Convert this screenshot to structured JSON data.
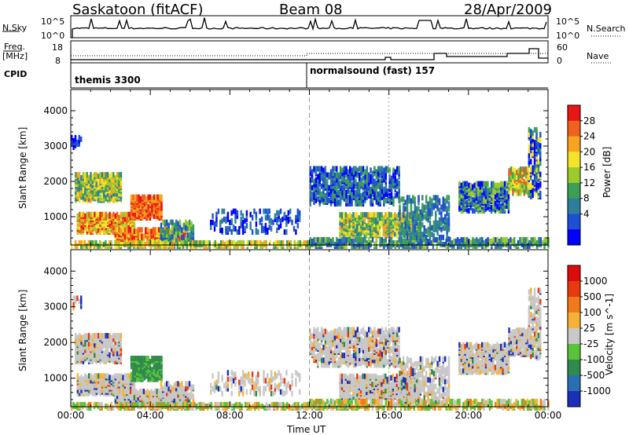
{
  "header": {
    "station": "Saskatoon (fitACF)",
    "beam": "Beam 08",
    "date": "28/Apr/2009"
  },
  "strips": {
    "nsky_label": "N.Sky",
    "nsky_ticks": [
      "10^5",
      "10^0"
    ],
    "nsearch_label": "N.Search",
    "nsearch_ticks": [
      "10^5",
      "10^0"
    ],
    "freq_label": "Freq.",
    "freq_unit": "[MHz]",
    "freq_ticks": [
      "18",
      "8"
    ],
    "nave_label": "Nave",
    "nave_ticks": [
      "60",
      "0"
    ],
    "cpid_label": "CPID",
    "cpid_modes": [
      "themis 3300",
      "normalsound (fast) 157"
    ]
  },
  "chart_data": [
    {
      "type": "heatmap",
      "ylabel": "Slant Range [km]",
      "xlabel": "",
      "y_ticks": [
        "4000",
        "3000",
        "2000",
        "1000"
      ],
      "ylim": [
        200,
        4600
      ],
      "colorbar_label": "Power [dB]",
      "colorbar_ticks": [
        "28",
        "24",
        "20",
        "16",
        "12",
        "8",
        "4"
      ],
      "colorbar_colors": [
        "#0000ff",
        "#1f4fd2",
        "#2e7e9a",
        "#3d9f55",
        "#9ccb2e",
        "#f5e52a",
        "#f8a41f",
        "#f0611c",
        "#e81616"
      ],
      "range": [
        0,
        30
      ]
    },
    {
      "type": "heatmap",
      "ylabel": "Slant Range [km]",
      "xlabel": "Time UT",
      "x_ticks": [
        "00:00",
        "04:00",
        "08:00",
        "12:00",
        "16:00",
        "20:00",
        "00:00"
      ],
      "y_ticks": [
        "4000",
        "3000",
        "2000",
        "1000"
      ],
      "ylim": [
        200,
        4600
      ],
      "colorbar_label": "Velocity [m s^-1]",
      "colorbar_ticks": [
        "1000",
        "500",
        "100",
        "25",
        "-25",
        "-100",
        "-500",
        "-1000"
      ],
      "colorbar_colors": [
        "#1b2fb8",
        "#2c6fb0",
        "#2f8a4e",
        "#59c33a",
        "#c8c8c8",
        "#f5b236",
        "#f07a18",
        "#e83a10",
        "#dd0b0b"
      ]
    }
  ]
}
